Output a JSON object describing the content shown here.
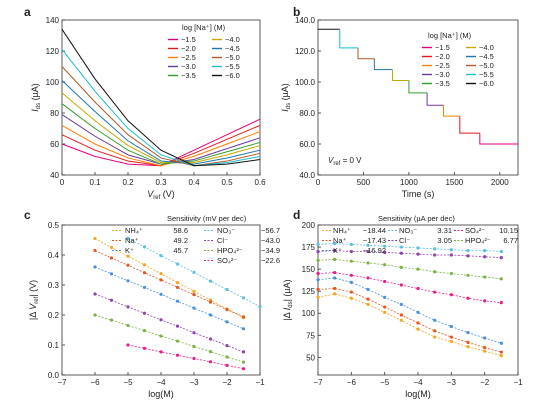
{
  "chart_data": [
    {
      "panel": "a",
      "type": "line",
      "xlabel": "V_ref (V)",
      "ylabel": "I_ds (µA)",
      "xlim": [
        0,
        0.6
      ],
      "ylim": [
        40,
        140
      ],
      "xticks": [
        "0",
        "0.1",
        "0.2",
        "0.3",
        "0.4",
        "0.5",
        "0.6"
      ],
      "yticks": [
        "40",
        "60",
        "80",
        "100",
        "120",
        "140"
      ],
      "legend_title": "log [Na⁺] (M)",
      "legend_position": "top-right",
      "series": [
        {
          "name": "−1.5",
          "color": "#e6007e",
          "x": [
            0,
            0.1,
            0.2,
            0.3,
            0.4,
            0.5,
            0.6
          ],
          "y": [
            60,
            52,
            47,
            46,
            56,
            66,
            76
          ]
        },
        {
          "name": "−2.0",
          "color": "#e31a1c",
          "x": [
            0,
            0.1,
            0.2,
            0.3,
            0.4,
            0.5,
            0.6
          ],
          "y": [
            66,
            56,
            49,
            46,
            54,
            63,
            72
          ]
        },
        {
          "name": "−2.5",
          "color": "#ff7f00",
          "x": [
            0,
            0.1,
            0.2,
            0.3,
            0.4,
            0.5,
            0.6
          ],
          "y": [
            72,
            60,
            51,
            46,
            52,
            60,
            68
          ]
        },
        {
          "name": "−3.0",
          "color": "#6a3d9a",
          "x": [
            0,
            0.1,
            0.2,
            0.3,
            0.4,
            0.5,
            0.6
          ],
          "y": [
            79,
            65,
            53,
            47,
            50,
            57,
            64
          ]
        },
        {
          "name": "−3.5",
          "color": "#33a02c",
          "x": [
            0,
            0.1,
            0.2,
            0.3,
            0.4,
            0.5,
            0.6
          ],
          "y": [
            86,
            70,
            56,
            47,
            49,
            55,
            61
          ]
        },
        {
          "name": "−4.0",
          "color": "#c7a800",
          "x": [
            0,
            0.1,
            0.2,
            0.3,
            0.4,
            0.5,
            0.6
          ],
          "y": [
            93,
            75,
            59,
            48,
            48,
            53,
            59
          ]
        },
        {
          "name": "−4.5",
          "color": "#1f78b4",
          "x": [
            0,
            0.1,
            0.2,
            0.3,
            0.4,
            0.5,
            0.6
          ],
          "y": [
            101,
            81,
            62,
            49,
            47,
            51,
            56
          ]
        },
        {
          "name": "−5.0",
          "color": "#b15928",
          "x": [
            0,
            0.1,
            0.2,
            0.3,
            0.4,
            0.5,
            0.6
          ],
          "y": [
            110,
            87,
            66,
            51,
            46,
            49,
            54
          ]
        },
        {
          "name": "−5.5",
          "color": "#17becf",
          "x": [
            0,
            0.1,
            0.2,
            0.3,
            0.4,
            0.5,
            0.6
          ],
          "y": [
            121,
            94,
            70,
            53,
            46,
            48,
            52
          ]
        },
        {
          "name": "−6.0",
          "color": "#111111",
          "x": [
            0,
            0.1,
            0.2,
            0.3,
            0.4,
            0.5,
            0.6
          ],
          "y": [
            134,
            102,
            75,
            56,
            46,
            47,
            50
          ]
        }
      ]
    },
    {
      "panel": "b",
      "type": "line",
      "xlabel": "Time (s)",
      "ylabel": "I_ds (µA)",
      "xlim": [
        0,
        2200
      ],
      "ylim": [
        40,
        140
      ],
      "xticks": [
        "0",
        "500",
        "1000",
        "1500",
        "2000"
      ],
      "yticks": [
        "40.0",
        "60.0",
        "80.0",
        "100.0",
        "120.0",
        "140.0"
      ],
      "annotation": "V_ref = 0 V",
      "legend_title": "log [Na⁺] (M)",
      "legend_position": "top-right",
      "series": [
        {
          "name": "−6.0",
          "color": "#111111",
          "t": [
            0,
            240
          ],
          "y": [
            134,
            134
          ]
        },
        {
          "name": "−5.5",
          "color": "#17becf",
          "t": [
            240,
            440
          ],
          "y": [
            122,
            122
          ]
        },
        {
          "name": "−5.0",
          "color": "#b15928",
          "t": [
            440,
            620
          ],
          "y": [
            115,
            115
          ]
        },
        {
          "name": "−4.5",
          "color": "#1f78b4",
          "t": [
            620,
            820
          ],
          "y": [
            108,
            108
          ]
        },
        {
          "name": "−4.0",
          "color": "#c7a800",
          "t": [
            820,
            1000
          ],
          "y": [
            101,
            101
          ]
        },
        {
          "name": "−3.5",
          "color": "#33a02c",
          "t": [
            1000,
            1200
          ],
          "y": [
            93,
            93
          ]
        },
        {
          "name": "−3.0",
          "color": "#6a3d9a",
          "t": [
            1200,
            1380
          ],
          "y": [
            85,
            85
          ]
        },
        {
          "name": "−2.5",
          "color": "#ff7f00",
          "t": [
            1380,
            1560
          ],
          "y": [
            78,
            78
          ]
        },
        {
          "name": "−2.0",
          "color": "#e31a1c",
          "t": [
            1560,
            1780
          ],
          "y": [
            67,
            67
          ]
        },
        {
          "name": "−1.5",
          "color": "#e6007e",
          "t": [
            1780,
            2200
          ],
          "y": [
            60,
            60
          ]
        }
      ]
    },
    {
      "panel": "c",
      "type": "scatter",
      "xlabel": "log(M)",
      "ylabel": "|Δ V_ref| (V)",
      "xlim": [
        -7,
        -1
      ],
      "ylim": [
        0,
        0.5
      ],
      "xticks": [
        "−7",
        "−6",
        "−5",
        "−4",
        "−3",
        "−2",
        "−1"
      ],
      "yticks": [
        "0.0",
        "0.1",
        "0.2",
        "0.3",
        "0.4",
        "0.5"
      ],
      "legend_title": "Sensitivity (mV per dec)",
      "series": [
        {
          "name": "NH₄⁺",
          "sens": "58.6",
          "color": "#f5a623",
          "x": [
            -6,
            -5.5,
            -5,
            -4.5,
            -4,
            -3.5,
            -3,
            -2.5,
            -2,
            -1.5
          ],
          "y": [
            0.455,
            0.425,
            0.396,
            0.367,
            0.338,
            0.308,
            0.279,
            0.25,
            0.22,
            0.191
          ]
        },
        {
          "name": "Na⁺",
          "sens": "49.2",
          "color": "#e8551e",
          "x": [
            -6,
            -5.5,
            -5,
            -4.5,
            -4,
            -3.5,
            -3,
            -2.5,
            -2,
            -1.5
          ],
          "y": [
            0.415,
            0.39,
            0.366,
            0.341,
            0.317,
            0.292,
            0.268,
            0.243,
            0.218,
            0.194
          ]
        },
        {
          "name": "K⁺",
          "sens": "45.7",
          "color": "#4a90e2",
          "x": [
            -6,
            -5.5,
            -5,
            -4.5,
            -4,
            -3.5,
            -3,
            -2.5,
            -2,
            -1.5
          ],
          "y": [
            0.36,
            0.337,
            0.314,
            0.292,
            0.269,
            0.246,
            0.223,
            0.2,
            0.177,
            0.154
          ]
        },
        {
          "name": "NO₃⁻",
          "sens": "−56.7",
          "color": "#5bc0de",
          "x": [
            -5,
            -4.5,
            -4,
            -3.5,
            -3,
            -2.5,
            -2,
            -1.5,
            -1
          ],
          "y": [
            0.455,
            0.427,
            0.398,
            0.37,
            0.342,
            0.313,
            0.285,
            0.257,
            0.228
          ]
        },
        {
          "name": "Cl⁻",
          "sens": "−43.0",
          "color": "#8e44ad",
          "x": [
            -6,
            -5.5,
            -5,
            -4.5,
            -4,
            -3.5,
            -3,
            -2.5,
            -2,
            -1.5
          ],
          "y": [
            0.27,
            0.249,
            0.227,
            0.206,
            0.184,
            0.163,
            0.141,
            0.12,
            0.098,
            0.077
          ]
        },
        {
          "name": "HPO₄²⁻",
          "sens": "−34.9",
          "color": "#7cb342",
          "x": [
            -6,
            -5.5,
            -5,
            -4.5,
            -4,
            -3.5,
            -3,
            -2.5,
            -2,
            -1.5
          ],
          "y": [
            0.2,
            0.183,
            0.165,
            0.148,
            0.13,
            0.113,
            0.095,
            0.078,
            0.06,
            0.043
          ]
        },
        {
          "name": "SO₄²⁻",
          "sens": "−22.6",
          "color": "#e91e8c",
          "x": [
            -5,
            -4.5,
            -4,
            -3.5,
            -3,
            -2.5,
            -2,
            -1.5
          ],
          "y": [
            0.1,
            0.089,
            0.077,
            0.066,
            0.055,
            0.044,
            0.032,
            0.021
          ]
        }
      ]
    },
    {
      "panel": "d",
      "type": "scatter",
      "xlabel": "log(M)",
      "ylabel": "|Δ I_ds| (µA)",
      "xlim": [
        -7,
        -1
      ],
      "ylim": [
        30,
        200
      ],
      "xticks": [
        "−7",
        "−6",
        "−5",
        "−4",
        "−3",
        "−2",
        "−1"
      ],
      "yticks": [
        "50",
        "75",
        "100",
        "125",
        "150",
        "175",
        "200"
      ],
      "legend_title": "Sensitivity (µA per dec)",
      "series": [
        {
          "name": "NH₄⁺",
          "sens": "−18.44",
          "color": "#f5a623",
          "x": [
            -7,
            -6.5,
            -6,
            -5.5,
            -5,
            -4.5,
            -4,
            -3.5,
            -3,
            -2.5,
            -2,
            -1.5
          ],
          "y": [
            118,
            122,
            117,
            110,
            101,
            92,
            82,
            73,
            68,
            62,
            57,
            52
          ]
        },
        {
          "name": "Na⁺",
          "sens": "−17.43",
          "color": "#e8551e",
          "x": [
            -7,
            -6.5,
            -6,
            -5.5,
            -5,
            -4.5,
            -4,
            -3.5,
            -3,
            -2.5,
            -2,
            -1.5
          ],
          "y": [
            127,
            128,
            124,
            116,
            107,
            98,
            89,
            80,
            73,
            67,
            61,
            56
          ]
        },
        {
          "name": "K⁺",
          "sens": "−16.92",
          "color": "#4a90e2",
          "x": [
            -7,
            -6.5,
            -6,
            -5.5,
            -5,
            -4.5,
            -4,
            -3.5,
            -3,
            -2.5,
            -2,
            -1.5
          ],
          "y": [
            138,
            140,
            135,
            127,
            118,
            110,
            101,
            92,
            85,
            78,
            72,
            66
          ]
        },
        {
          "name": "NO₃⁻",
          "sens": "3.31",
          "color": "#5bc0de",
          "x": [
            -7,
            -6.5,
            -6,
            -5.5,
            -5,
            -4.5,
            -4,
            -3.5,
            -3,
            -2.5,
            -2,
            -1.5
          ],
          "y": [
            178,
            179,
            178,
            177,
            176,
            175,
            174,
            173,
            172,
            171,
            171,
            170
          ]
        },
        {
          "name": "Cl⁻",
          "sens": "3.05",
          "color": "#8e44ad",
          "x": [
            -7,
            -6.5,
            -6,
            -5.5,
            -5,
            -4.5,
            -4,
            -3.5,
            -3,
            -2.5,
            -2,
            -1.5
          ],
          "y": [
            170,
            171,
            170,
            170,
            169,
            168,
            167,
            166,
            166,
            165,
            164,
            163
          ]
        },
        {
          "name": "SO₄²⁻",
          "sens": "10.15",
          "color": "#e91e8c",
          "x": [
            -7,
            -6.5,
            -6,
            -5.5,
            -5,
            -4.5,
            -4,
            -3.5,
            -3,
            -2.5,
            -2,
            -1.5
          ],
          "y": [
            145,
            146,
            143,
            140,
            136,
            132,
            128,
            124,
            121,
            117,
            114,
            112
          ]
        },
        {
          "name": "HPO₄²⁻",
          "sens": "6.77",
          "color": "#7cb342",
          "x": [
            -7,
            -6.5,
            -6,
            -5.5,
            -5,
            -4.5,
            -4,
            -3.5,
            -3,
            -2.5,
            -2,
            -1.5
          ],
          "y": [
            160,
            161,
            159,
            157,
            155,
            152,
            150,
            147,
            145,
            143,
            141,
            139
          ]
        }
      ]
    }
  ]
}
